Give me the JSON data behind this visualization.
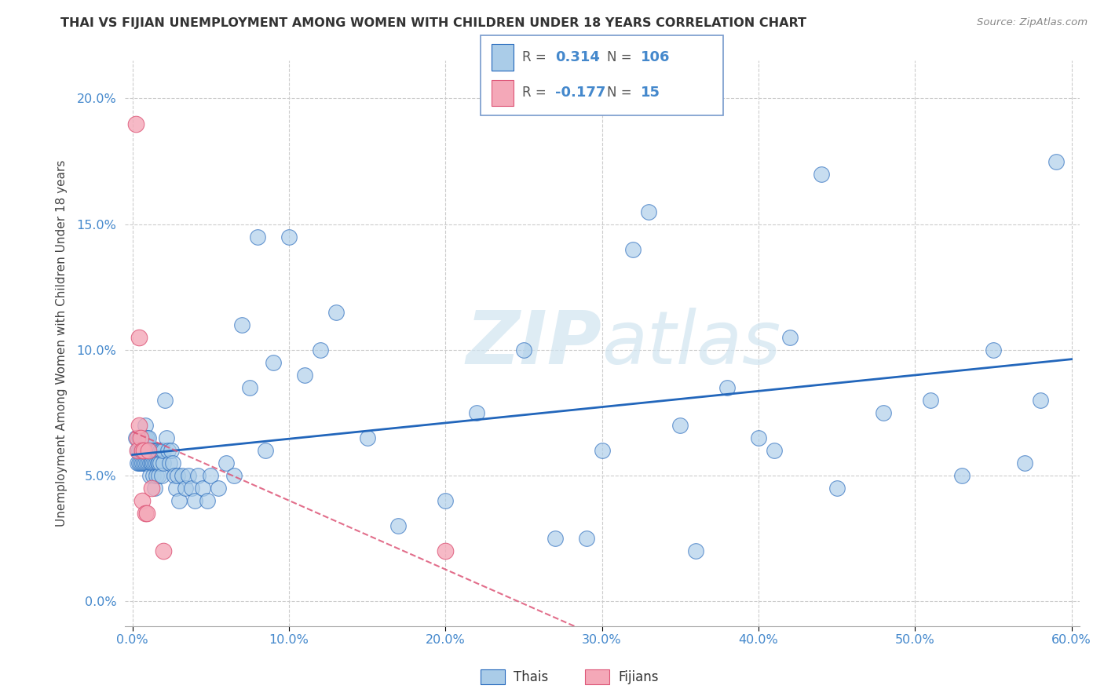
{
  "title": "THAI VS FIJIAN UNEMPLOYMENT AMONG WOMEN WITH CHILDREN UNDER 18 YEARS CORRELATION CHART",
  "source": "Source: ZipAtlas.com",
  "ylabel": "Unemployment Among Women with Children Under 18 years",
  "xlabel": "",
  "xlim": [
    -0.005,
    0.605
  ],
  "ylim": [
    -0.01,
    0.215
  ],
  "xticks": [
    0.0,
    0.1,
    0.2,
    0.3,
    0.4,
    0.5,
    0.6
  ],
  "yticks": [
    0.0,
    0.05,
    0.1,
    0.15,
    0.2
  ],
  "thai_R": 0.314,
  "thai_N": 106,
  "fijian_R": -0.177,
  "fijian_N": 15,
  "thai_color": "#aacce8",
  "fijian_color": "#f4a8b8",
  "thai_line_color": "#2266bb",
  "fijian_line_color": "#dd5577",
  "watermark_color": "#d0e4f0",
  "title_color": "#333333",
  "tick_color": "#4488cc",
  "grid_color": "#cccccc",
  "thai_x": [
    0.002,
    0.003,
    0.003,
    0.004,
    0.004,
    0.004,
    0.005,
    0.005,
    0.005,
    0.006,
    0.006,
    0.006,
    0.007,
    0.007,
    0.007,
    0.007,
    0.008,
    0.008,
    0.008,
    0.008,
    0.009,
    0.009,
    0.009,
    0.01,
    0.01,
    0.01,
    0.011,
    0.011,
    0.011,
    0.012,
    0.012,
    0.012,
    0.013,
    0.013,
    0.014,
    0.014,
    0.014,
    0.015,
    0.015,
    0.015,
    0.016,
    0.016,
    0.017,
    0.017,
    0.018,
    0.018,
    0.019,
    0.019,
    0.02,
    0.02,
    0.021,
    0.022,
    0.023,
    0.024,
    0.025,
    0.026,
    0.027,
    0.028,
    0.029,
    0.03,
    0.032,
    0.034,
    0.036,
    0.038,
    0.04,
    0.042,
    0.045,
    0.048,
    0.05,
    0.055,
    0.06,
    0.065,
    0.07,
    0.075,
    0.08,
    0.085,
    0.09,
    0.1,
    0.11,
    0.12,
    0.13,
    0.15,
    0.17,
    0.2,
    0.22,
    0.25,
    0.3,
    0.32,
    0.35,
    0.38,
    0.4,
    0.42,
    0.45,
    0.48,
    0.51,
    0.53,
    0.55,
    0.57,
    0.58,
    0.59,
    0.27,
    0.29,
    0.33,
    0.36,
    0.41,
    0.44
  ],
  "thai_y": [
    0.065,
    0.06,
    0.055,
    0.065,
    0.055,
    0.06,
    0.06,
    0.055,
    0.065,
    0.055,
    0.065,
    0.06,
    0.06,
    0.055,
    0.065,
    0.06,
    0.055,
    0.06,
    0.065,
    0.07,
    0.055,
    0.06,
    0.065,
    0.055,
    0.06,
    0.065,
    0.055,
    0.06,
    0.05,
    0.055,
    0.06,
    0.055,
    0.05,
    0.055,
    0.06,
    0.055,
    0.045,
    0.06,
    0.05,
    0.055,
    0.055,
    0.06,
    0.055,
    0.05,
    0.06,
    0.055,
    0.06,
    0.05,
    0.055,
    0.06,
    0.08,
    0.065,
    0.06,
    0.055,
    0.06,
    0.055,
    0.05,
    0.045,
    0.05,
    0.04,
    0.05,
    0.045,
    0.05,
    0.045,
    0.04,
    0.05,
    0.045,
    0.04,
    0.05,
    0.045,
    0.055,
    0.05,
    0.11,
    0.085,
    0.145,
    0.06,
    0.095,
    0.145,
    0.09,
    0.1,
    0.115,
    0.065,
    0.03,
    0.04,
    0.075,
    0.1,
    0.06,
    0.14,
    0.07,
    0.085,
    0.065,
    0.105,
    0.045,
    0.075,
    0.08,
    0.05,
    0.1,
    0.055,
    0.08,
    0.175,
    0.025,
    0.025,
    0.155,
    0.02,
    0.06,
    0.17
  ],
  "fijian_x": [
    0.002,
    0.003,
    0.003,
    0.004,
    0.004,
    0.005,
    0.006,
    0.006,
    0.007,
    0.008,
    0.009,
    0.01,
    0.012,
    0.02,
    0.2
  ],
  "fijian_y": [
    0.19,
    0.065,
    0.06,
    0.105,
    0.07,
    0.065,
    0.06,
    0.04,
    0.06,
    0.035,
    0.035,
    0.06,
    0.045,
    0.02,
    0.02
  ]
}
